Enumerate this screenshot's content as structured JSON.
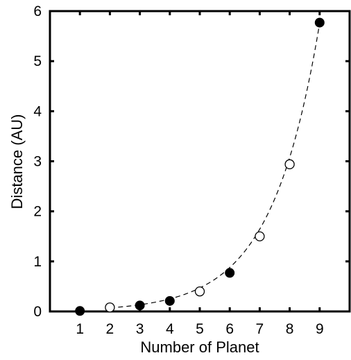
{
  "chart_data": {
    "type": "scatter",
    "xlabel": "Number of Planet",
    "ylabel": "Distance (AU)",
    "xlim": [
      0,
      10
    ],
    "ylim": [
      0,
      6
    ],
    "xticks": [
      "1",
      "2",
      "3",
      "4",
      "5",
      "6",
      "7",
      "8",
      "9"
    ],
    "yticks": [
      "0",
      "1",
      "2",
      "3",
      "4",
      "5",
      "6"
    ],
    "grid": false,
    "legend": "none",
    "series": [
      {
        "marker": "filled-circle",
        "color": "#000000",
        "points": [
          {
            "x": 1,
            "y": 0.01
          },
          {
            "x": 3,
            "y": 0.12
          },
          {
            "x": 4,
            "y": 0.21
          },
          {
            "x": 6,
            "y": 0.77
          },
          {
            "x": 9,
            "y": 5.77
          }
        ]
      },
      {
        "marker": "open-circle",
        "color": "#000000",
        "points": [
          {
            "x": 2,
            "y": 0.08
          },
          {
            "x": 5,
            "y": 0.4
          },
          {
            "x": 7,
            "y": 1.5
          },
          {
            "x": 8,
            "y": 2.94
          }
        ]
      }
    ],
    "fit_curve": {
      "style": "dashed",
      "color": "#000000",
      "model": "exponential",
      "a": 0.0204,
      "b": 0.627
    }
  }
}
